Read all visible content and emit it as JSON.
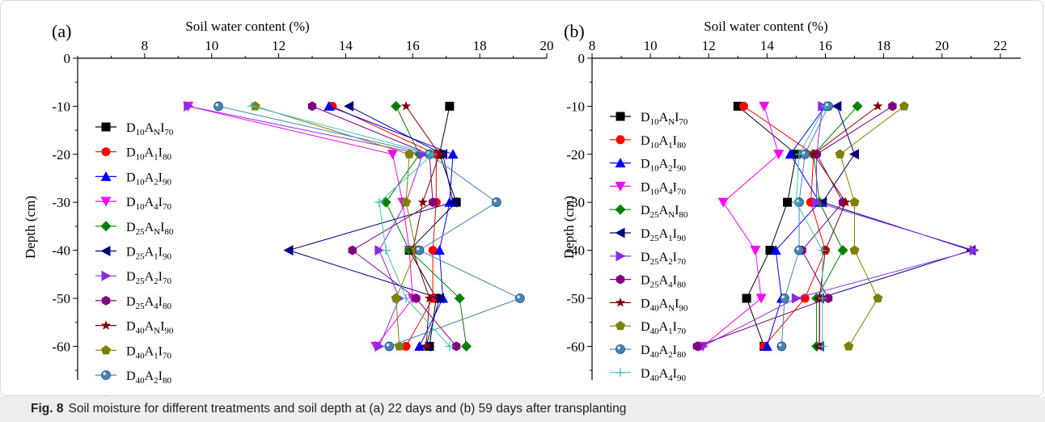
{
  "figure": {
    "caption_label": "Fig. 8",
    "caption_text": "Soil moisture for different treatments and soil depth at (a) 22 days and (b) 59 days after transplanting"
  },
  "series_styles": [
    {
      "color": "#000000",
      "marker": "square"
    },
    {
      "color": "#ff0000",
      "marker": "circle"
    },
    {
      "color": "#0000ff",
      "marker": "triangle-up"
    },
    {
      "color": "#ff00ff",
      "marker": "triangle-down"
    },
    {
      "color": "#008000",
      "marker": "diamond"
    },
    {
      "color": "#000080",
      "marker": "triangle-left"
    },
    {
      "color": "#8a2be2",
      "marker": "triangle-right"
    },
    {
      "color": "#800080",
      "marker": "hexagon"
    },
    {
      "color": "#800000",
      "marker": "star"
    },
    {
      "color": "#808000",
      "marker": "pentagon"
    },
    {
      "color": "#4682b4",
      "marker": "sphere"
    },
    {
      "color": "#40bfbf",
      "marker": "plus"
    }
  ],
  "chart_data": [
    {
      "panel_label": "(a)",
      "type": "line",
      "xlabel": "Soil water content (%)",
      "ylabel": "Depth (cm)",
      "xlim": [
        6,
        20
      ],
      "ylim": [
        -67,
        0
      ],
      "xticks": [
        8,
        10,
        12,
        14,
        16,
        18,
        20
      ],
      "yticks": [
        0,
        -10,
        -20,
        -30,
        -40,
        -50,
        -60
      ],
      "xtick_labels": [
        "8",
        "10",
        "12",
        "14",
        "16",
        "18",
        "20"
      ],
      "ytick_labels": [
        "0",
        "-10",
        "-20",
        "-30",
        "-40",
        "-50",
        "-60"
      ],
      "depths": [
        -10,
        -20,
        -30,
        -40,
        -50,
        -60
      ],
      "series": [
        {
          "name": [
            "D",
            "10",
            "A",
            "N",
            "I",
            "70"
          ],
          "values": [
            17.1,
            16.8,
            17.3,
            15.9,
            16.7,
            16.5
          ]
        },
        {
          "name": [
            "D",
            "10",
            "A",
            "1",
            "I",
            "80"
          ],
          "values": [
            13.6,
            16.7,
            16.7,
            16.6,
            16.6,
            15.8
          ]
        },
        {
          "name": [
            "D",
            "10",
            "A",
            "2",
            "I",
            "90"
          ],
          "values": [
            13.5,
            17.2,
            17.1,
            16.8,
            16.9,
            16.2
          ]
        },
        {
          "name": [
            "D",
            "10",
            "A",
            "4",
            "I",
            "70"
          ],
          "values": [
            9.3,
            15.4,
            15.7,
            15.9,
            16.0,
            14.9
          ]
        },
        {
          "name": [
            "D",
            "25",
            "A",
            "N",
            "I",
            "80"
          ],
          "values": [
            15.5,
            16.2,
            15.2,
            15.9,
            17.4,
            17.6
          ]
        },
        {
          "name": [
            "D",
            "25",
            "A",
            "1",
            "I",
            "90"
          ],
          "values": [
            14.1,
            16.9,
            17.2,
            12.3,
            16.8,
            16.4
          ]
        },
        {
          "name": [
            "D",
            "25",
            "A",
            "2",
            "I",
            "70"
          ],
          "values": [
            9.3,
            16.3,
            15.8,
            15.0,
            15.6,
            15.0
          ]
        },
        {
          "name": [
            "D",
            "25",
            "A",
            "4",
            "I",
            "80"
          ],
          "values": [
            13.0,
            16.5,
            16.6,
            14.2,
            16.1,
            17.3
          ]
        },
        {
          "name": [
            "D",
            "40",
            "A",
            "N",
            "I",
            "90"
          ],
          "values": [
            15.8,
            16.8,
            16.3,
            16.0,
            16.5,
            16.4
          ]
        },
        {
          "name": [
            "D",
            "40",
            "A",
            "1",
            "I",
            "70"
          ],
          "values": [
            11.3,
            15.9,
            15.8,
            16.1,
            15.5,
            15.6
          ]
        },
        {
          "name": [
            "D",
            "40",
            "A",
            "2",
            "I",
            "80"
          ],
          "values": [
            10.2,
            16.5,
            18.5,
            16.2,
            19.2,
            15.3
          ]
        },
        {
          "name": [
            "D",
            "40",
            "A",
            "4",
            "I",
            "90"
          ],
          "values": [
            11.2,
            16.6,
            15.0,
            15.2,
            15.8,
            17.1
          ]
        }
      ]
    },
    {
      "panel_label": "(b)",
      "type": "line",
      "xlabel": "Soil water content (%)",
      "ylabel": "Depth (cm)",
      "xlim": [
        8,
        22.7
      ],
      "ylim": [
        -67,
        0
      ],
      "xticks": [
        8,
        10,
        12,
        14,
        16,
        18,
        20,
        22
      ],
      "yticks": [
        0,
        -10,
        -20,
        -30,
        -40,
        -50,
        -60
      ],
      "xtick_labels": [
        "8",
        "10",
        "12",
        "14",
        "16",
        "18",
        "20",
        "22"
      ],
      "ytick_labels": [
        "0",
        "-10",
        "-20",
        "-30",
        "-40",
        "-50",
        "-60"
      ],
      "depths": [
        -10,
        -20,
        -30,
        -40,
        -50,
        -60
      ],
      "series": [
        {
          "name": [
            "D",
            "10",
            "A",
            "N",
            "I",
            "70"
          ],
          "values": [
            13.0,
            15.0,
            14.7,
            14.1,
            13.3,
            13.9
          ]
        },
        {
          "name": [
            "D",
            "10",
            "A",
            "1",
            "I",
            "80"
          ],
          "values": [
            13.2,
            15.6,
            15.5,
            16.0,
            15.3,
            13.9
          ]
        },
        {
          "name": [
            "D",
            "10",
            "A",
            "2",
            "I",
            "90"
          ],
          "values": [
            16.0,
            14.8,
            15.8,
            14.3,
            14.5,
            14.0
          ]
        },
        {
          "name": [
            "D",
            "10",
            "A",
            "4",
            "I",
            "70"
          ],
          "values": [
            13.9,
            14.4,
            12.5,
            13.6,
            13.8,
            11.8
          ]
        },
        {
          "name": [
            "D",
            "25",
            "A",
            "N",
            "I",
            "80"
          ],
          "values": [
            17.1,
            15.6,
            15.8,
            16.6,
            15.7,
            15.7
          ]
        },
        {
          "name": [
            "D",
            "25",
            "A",
            "1",
            "I",
            "90"
          ],
          "values": [
            16.4,
            17.0,
            15.9,
            21.0,
            15.8,
            15.8
          ]
        },
        {
          "name": [
            "D",
            "25",
            "A",
            "2",
            "I",
            "70"
          ],
          "values": [
            15.9,
            15.7,
            15.7,
            21.1,
            15.0,
            11.8
          ]
        },
        {
          "name": [
            "D",
            "25",
            "A",
            "4",
            "I",
            "80"
          ],
          "values": [
            18.3,
            15.7,
            16.6,
            15.2,
            16.1,
            11.6
          ]
        },
        {
          "name": [
            "D",
            "40",
            "A",
            "N",
            "I",
            "90"
          ],
          "values": [
            17.8,
            15.6,
            16.7,
            16.0,
            15.8,
            15.8
          ]
        },
        {
          "name": [
            "D",
            "40",
            "A",
            "1",
            "I",
            "70"
          ],
          "values": [
            18.7,
            16.5,
            17.0,
            17.0,
            17.8,
            16.8
          ]
        },
        {
          "name": [
            "D",
            "40",
            "A",
            "2",
            "I",
            "80"
          ],
          "values": [
            16.1,
            15.3,
            15.1,
            15.1,
            14.6,
            14.5
          ]
        },
        {
          "name": [
            "D",
            "40",
            "A",
            "4",
            "I",
            "90"
          ],
          "values": [
            16.0,
            15.1,
            15.0,
            15.9,
            15.9,
            15.9
          ]
        }
      ]
    }
  ]
}
